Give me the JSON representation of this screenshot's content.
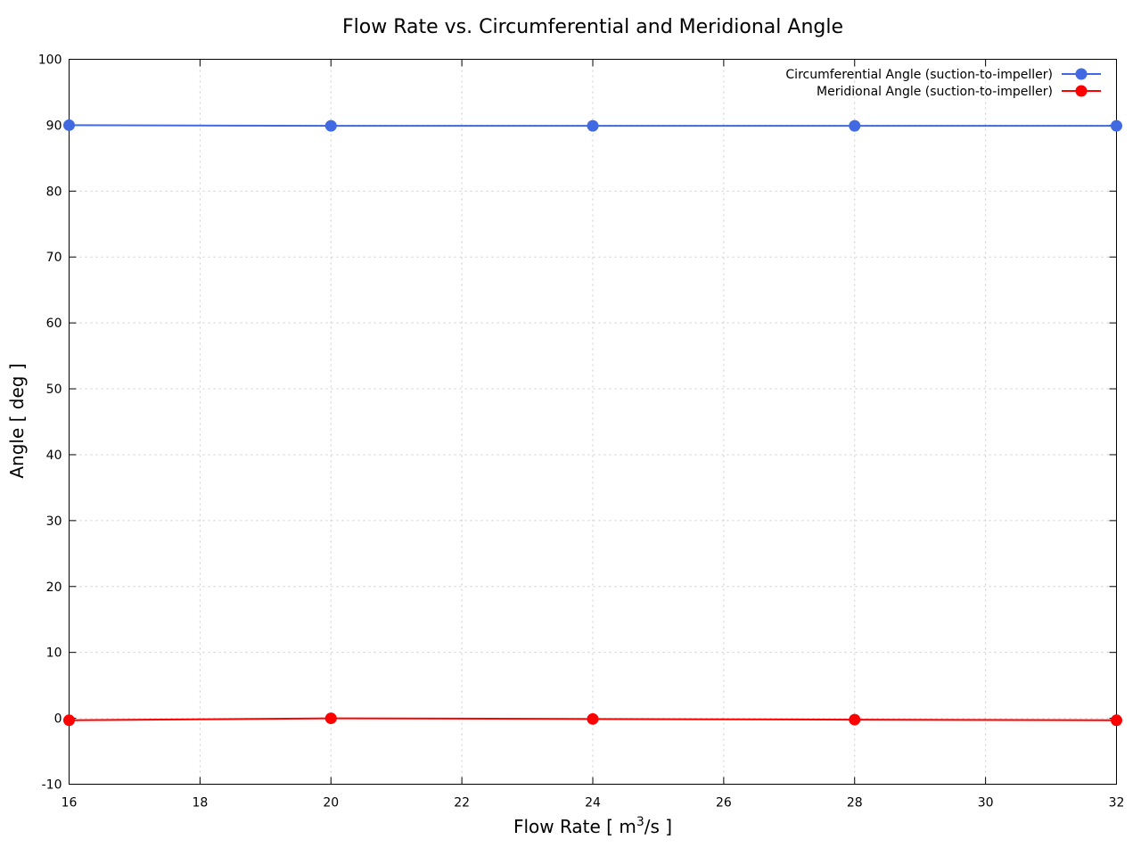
{
  "chart_data": {
    "type": "line",
    "title": "Flow Rate vs. Circumferential and Meridional Angle",
    "xlabel_main": "Flow Rate [ m",
    "xlabel_sup": "3",
    "xlabel_tail": "/s ]",
    "ylabel": "Angle [ deg ]",
    "xlim": [
      16,
      32
    ],
    "ylim": [
      -10,
      100
    ],
    "xticks": [
      16,
      18,
      20,
      22,
      24,
      26,
      28,
      30,
      32
    ],
    "yticks": [
      -10,
      0,
      10,
      20,
      30,
      40,
      50,
      60,
      70,
      80,
      90,
      100
    ],
    "grid": true,
    "legend_position": "top-right",
    "x": [
      16,
      20,
      24,
      28,
      32
    ],
    "series": [
      {
        "name": "Circumferential Angle (suction-to-impeller)",
        "color": "#4169e1",
        "values": [
          90.0,
          89.9,
          89.9,
          89.9,
          89.9
        ]
      },
      {
        "name": "Meridional Angle (suction-to-impeller)",
        "color": "#ff0000",
        "values": [
          -0.3,
          0.0,
          -0.1,
          -0.2,
          -0.3
        ]
      }
    ]
  }
}
